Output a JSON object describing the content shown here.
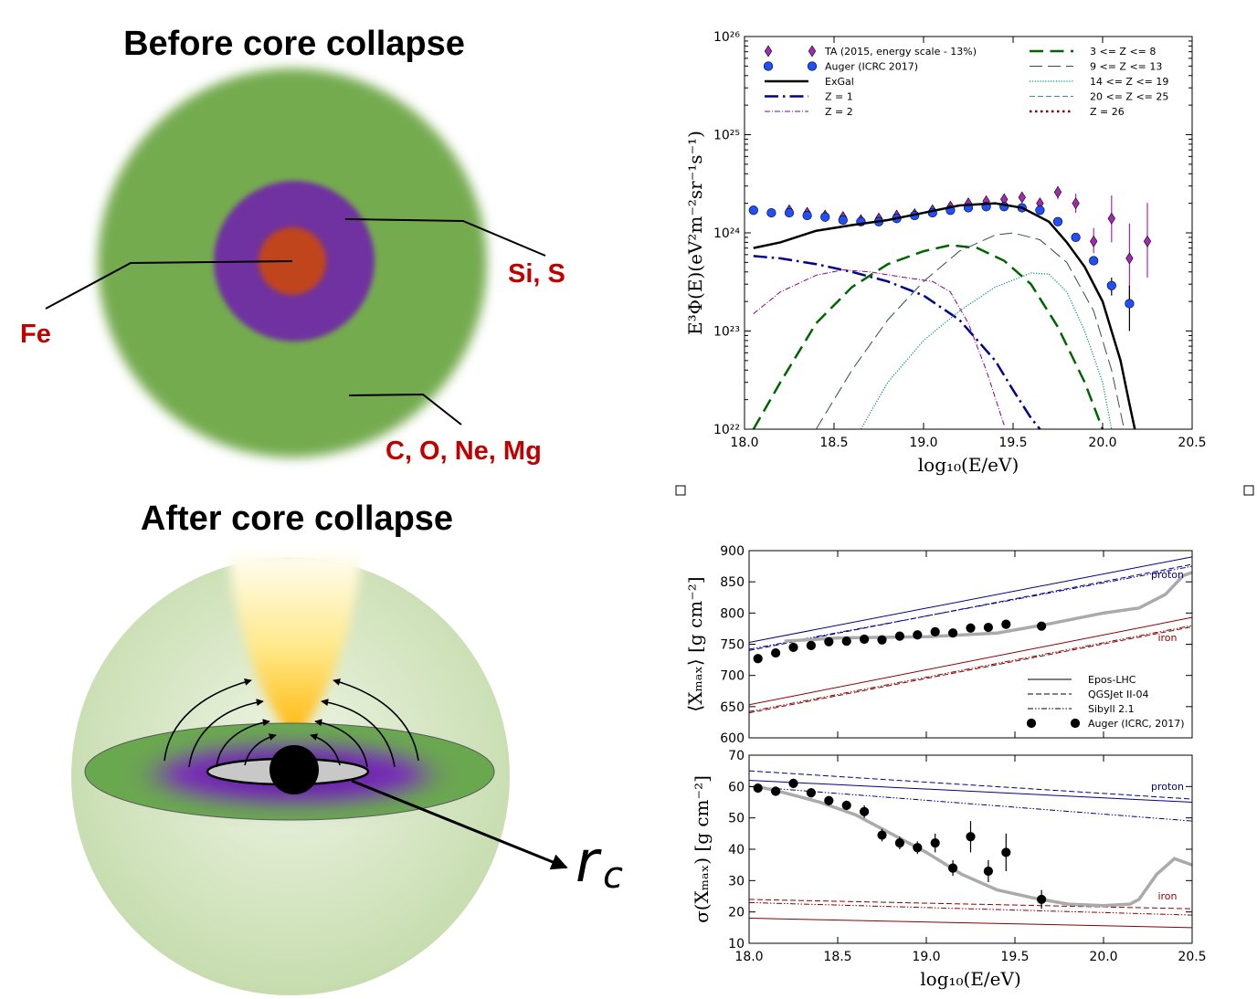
{
  "diagrams": {
    "before": {
      "title": "Before core collapse",
      "labels": [
        "Si, S",
        "Fe",
        "C, O, Ne, Mg"
      ]
    },
    "after": {
      "title": "After core collapse",
      "radius_label": {
        "label": "r",
        "subscript": "c"
      }
    }
  },
  "chart_data": [
    {
      "type": "line",
      "yscale": "log",
      "xlabel": "log₁₀(E/eV)",
      "ylabel": "E³Φ(E)(eV²m⁻²sr⁻¹s⁻¹)",
      "xlim": [
        18,
        20.5
      ],
      "ylim": [
        1e+22,
        1e+26
      ],
      "xticks": [
        {
          "value": 18,
          "label": "18.0"
        },
        18.5,
        {
          "value": 19,
          "label": "19.0"
        },
        19.5,
        {
          "value": 20,
          "label": "20.0"
        },
        20.5
      ],
      "yticks": [
        {
          "value": 1e+22,
          "label": "10²²"
        },
        {
          "value": 1e+23,
          "label": "10²³"
        },
        {
          "value": 1e+24,
          "label": "10²⁴"
        },
        {
          "value": 1e+25,
          "label": "10²⁵"
        },
        {
          "value": 1e+26,
          "label": "10²⁶"
        }
      ],
      "series": [
        {
          "name": "TA (2015, energy scale - 13%)",
          "color": "#a32ab0",
          "marker": "diamond",
          "x": [
            18.25,
            18.35,
            18.45,
            18.55,
            18.65,
            18.75,
            18.85,
            18.95,
            19.05,
            19.15,
            19.25,
            19.35,
            19.45,
            19.55,
            19.65,
            19.75,
            19.85,
            19.95,
            20.05,
            20.15,
            20.25
          ],
          "values": [
            1.7e+24,
            1.6e+24,
            1.5e+24,
            1.45e+24,
            1.35e+24,
            1.4e+24,
            1.5e+24,
            1.55e+24,
            1.7e+24,
            1.85e+24,
            2e+24,
            2.1e+24,
            2.2e+24,
            2.3e+24,
            2e+24,
            2.6e+24,
            2e+24,
            8.2e+23,
            1.4e+24,
            5.5e+23,
            8.2e+23
          ],
          "yerr_low": [
            1e+23,
            1e+23,
            1e+23,
            1e+23,
            1e+23,
            1e+23,
            1e+23,
            1e+23,
            1e+23,
            1e+23,
            1e+23,
            1.5e+23,
            1.5e+23,
            2e+23,
            2e+23,
            4e+23,
            4e+23,
            2e+23,
            6e+23,
            3.5e+23,
            4.7e+23
          ],
          "yerr_high": [
            1e+23,
            1e+23,
            1e+23,
            1e+23,
            1e+23,
            1e+23,
            1e+23,
            1e+23,
            1e+23,
            1e+23,
            1e+23,
            1.5e+23,
            1.5e+23,
            2e+23,
            2e+23,
            4e+23,
            5e+23,
            3e+23,
            1e+24,
            7e+23,
            1.2e+24
          ]
        },
        {
          "name": "Auger (ICRC 2017)",
          "color": "#1f4fff",
          "marker": "circle",
          "x": [
            18.05,
            18.15,
            18.25,
            18.35,
            18.45,
            18.55,
            18.65,
            18.75,
            18.85,
            18.95,
            19.05,
            19.15,
            19.25,
            19.35,
            19.45,
            19.55,
            19.65,
            19.75,
            19.85,
            19.95,
            20.05,
            20.15
          ],
          "values": [
            1.7e+24,
            1.6e+24,
            1.6e+24,
            1.5e+24,
            1.45e+24,
            1.35e+24,
            1.3e+24,
            1.3e+24,
            1.4e+24,
            1.5e+24,
            1.6e+24,
            1.7e+24,
            1.8e+24,
            1.85e+24,
            1.85e+24,
            1.8e+24,
            1.7e+24,
            1.3e+24,
            9e+23,
            5.2e+23,
            2.9e+23,
            1.9e+23
          ],
          "yerr_low": [
            2e+22,
            2e+22,
            2e+22,
            2e+22,
            2e+22,
            2e+22,
            2e+22,
            2e+22,
            2e+22,
            2e+22,
            2e+22,
            2e+22,
            2e+22,
            2e+22,
            2e+22,
            2e+22,
            3e+22,
            4e+22,
            5e+22,
            5e+22,
            6e+22,
            9e+22
          ],
          "yerr_high": [
            2e+22,
            2e+22,
            2e+22,
            2e+22,
            2e+22,
            2e+22,
            2e+22,
            2e+22,
            2e+22,
            2e+22,
            2e+22,
            2e+22,
            2e+22,
            2e+22,
            2e+22,
            2e+22,
            3e+22,
            4e+22,
            5e+22,
            5e+22,
            6e+22,
            1e+23
          ]
        },
        {
          "name": "ExGal",
          "color": "#000000",
          "dash": "solid",
          "linewidth": 2.5,
          "x": [
            18.05,
            18.2,
            18.4,
            18.6,
            18.8,
            19.0,
            19.2,
            19.4,
            19.55,
            19.7,
            19.8,
            19.9,
            20.0,
            20.1,
            20.15,
            20.18
          ],
          "values": [
            7e+23,
            8e+23,
            1.05e+24,
            1.2e+24,
            1.35e+24,
            1.6e+24,
            1.9e+24,
            2e+24,
            1.8e+24,
            1.3e+24,
            8e+23,
            4.5e+23,
            2e+23,
            5e+22,
            1.8e+22,
            1e+22
          ]
        },
        {
          "name": "Z = 1",
          "color": "#00008b",
          "dash": "dashdot",
          "linewidth": 2.5,
          "x": [
            18.05,
            18.2,
            18.4,
            18.6,
            18.8,
            19.0,
            19.2,
            19.4,
            19.5,
            19.6,
            19.65
          ],
          "values": [
            5.8e+23,
            5.5e+23,
            4.8e+23,
            4e+23,
            3.2e+23,
            2.3e+23,
            1.3e+23,
            5e+22,
            2.5e+22,
            1.3e+22,
            1e+22
          ]
        },
        {
          "name": "Z = 2",
          "color": "#8b008b",
          "dash": "dashdot",
          "linewidth": 1,
          "x": [
            18.05,
            18.2,
            18.4,
            18.55,
            18.7,
            18.9,
            19.05,
            19.15,
            19.25,
            19.35,
            19.45
          ],
          "values": [
            1.5e+23,
            2.5e+23,
            3.7e+23,
            4.2e+23,
            4e+23,
            3.5e+23,
            3.2e+23,
            2.5e+23,
            1.2e+23,
            4e+22,
            1.1e+22
          ]
        },
        {
          "name": "3 <= Z <= 8",
          "color": "#006400",
          "dash": "dashed",
          "linewidth": 2.5,
          "x": [
            18.05,
            18.2,
            18.4,
            18.6,
            18.8,
            19.0,
            19.15,
            19.3,
            19.45,
            19.6,
            19.75,
            19.9,
            20.0
          ],
          "values": [
            1e+22,
            3e+22,
            1.2e+23,
            2.8e+23,
            4.8e+23,
            6.5e+23,
            7.5e+23,
            7e+23,
            5.2e+23,
            3e+23,
            1.1e+23,
            3e+22,
            1e+22
          ]
        },
        {
          "name": "9 <= Z <= 13",
          "color": "#2f4f4f",
          "dash": "longdash",
          "linewidth": 1,
          "x": [
            18.4,
            18.6,
            18.8,
            19.0,
            19.2,
            19.4,
            19.5,
            19.65,
            19.8,
            19.95,
            20.05,
            20.12
          ],
          "values": [
            1e+22,
            4e+22,
            1.3e+23,
            3.2e+23,
            6.5e+23,
            9.5e+23,
            1e+24,
            8.5e+23,
            5e+23,
            1.6e+23,
            4e+22,
            1e+22
          ]
        },
        {
          "name": "14 <= Z <= 19",
          "color": "#008b8b",
          "dash": "dotted",
          "linewidth": 1.2,
          "x": [
            18.65,
            18.8,
            19.0,
            19.2,
            19.4,
            19.6,
            19.7,
            19.8,
            19.9,
            20.0,
            20.05
          ],
          "values": [
            1e+22,
            3e+22,
            8e+22,
            1.6e+23,
            2.8e+23,
            3.9e+23,
            3.8e+23,
            2.5e+23,
            1e+23,
            3e+22,
            1e+22
          ]
        },
        {
          "name": "20 <= Z <= 25",
          "color": "#4682b4",
          "dash": "dashed",
          "linewidth": 1,
          "x": [],
          "values": []
        },
        {
          "name": "Z = 26",
          "color": "#8b0000",
          "dash": "dotted",
          "linewidth": 2.5,
          "x": [],
          "values": []
        }
      ]
    },
    {
      "type": "line",
      "ylabel": "⟨Xₘₐₓ⟩ [g cm⁻²]",
      "xlim": [
        18,
        20.5
      ],
      "ylim": [
        600,
        900
      ],
      "xticks": [
        18,
        18.5,
        19,
        19.5,
        20,
        20.5
      ],
      "yticks": [
        600,
        650,
        700,
        750,
        800,
        850,
        900
      ],
      "annotations": [
        {
          "text": "proton",
          "color": "#00008b"
        },
        {
          "text": "iron",
          "color": "#8b0000"
        }
      ],
      "legend": {
        "corner": "lower right",
        "entries": [
          {
            "name": "Epos-LHC",
            "dash": "solid"
          },
          {
            "name": "QGSJet II-04",
            "dash": "dashed"
          },
          {
            "name": "Sibyll 2.1",
            "dash": "dashdotdot"
          },
          {
            "name": "Auger (ICRC, 2017)",
            "marker": "circle"
          }
        ]
      },
      "series": [
        {
          "color": "#00008b",
          "dash": "solid",
          "linewidth": 1,
          "x": [
            18,
            20.5
          ],
          "values": [
            753,
            890
          ]
        },
        {
          "color": "#00008b",
          "dash": "dashed",
          "linewidth": 1,
          "x": [
            18,
            20.5
          ],
          "values": [
            740,
            878
          ]
        },
        {
          "color": "#00008b",
          "dash": "dashdotdot",
          "linewidth": 1,
          "x": [
            18,
            20.5
          ],
          "values": [
            742,
            875
          ]
        },
        {
          "color": "#8b0000",
          "dash": "solid",
          "linewidth": 1,
          "x": [
            18,
            20.5
          ],
          "values": [
            653,
            793
          ]
        },
        {
          "color": "#8b0000",
          "dash": "dashed",
          "linewidth": 1,
          "x": [
            18,
            20.5
          ],
          "values": [
            640,
            778
          ]
        },
        {
          "color": "#8b0000",
          "dash": "dashdotdot",
          "linewidth": 1,
          "x": [
            18,
            20.5
          ],
          "values": [
            642,
            780
          ]
        },
        {
          "color": "#aaaaaa",
          "dash": "solid",
          "linewidth": 3.5,
          "x": [
            18.2,
            18.5,
            19.0,
            19.4,
            19.7,
            20.0,
            20.2,
            20.35,
            20.45,
            20.5
          ],
          "values": [
            755,
            760,
            762,
            768,
            783,
            800,
            808,
            830,
            860,
            865
          ]
        },
        {
          "color": "#000000",
          "marker": "circle",
          "x": [
            18.05,
            18.15,
            18.25,
            18.35,
            18.45,
            18.55,
            18.65,
            18.75,
            18.85,
            18.95,
            19.05,
            19.15,
            19.25,
            19.35,
            19.45,
            19.65
          ],
          "values": [
            727,
            736,
            745,
            748,
            754,
            755,
            758,
            757,
            763,
            765,
            770,
            768,
            776,
            777,
            782,
            779
          ],
          "yerr": [
            5,
            5,
            5,
            5,
            5,
            5,
            5,
            5,
            5,
            5,
            5,
            5,
            6,
            6,
            7,
            7
          ]
        }
      ]
    },
    {
      "type": "line",
      "xlabel": "log₁₀(E/eV)",
      "ylabel": "σ(Xₘₐₓ) [g cm⁻²]",
      "xlim": [
        18,
        20.5
      ],
      "ylim": [
        10,
        70
      ],
      "xticks": [
        {
          "value": 18,
          "label": "18.0"
        },
        18.5,
        {
          "value": 19,
          "label": "19.0"
        },
        19.5,
        {
          "value": 20,
          "label": "20.0"
        },
        20.5
      ],
      "yticks": [
        10,
        20,
        30,
        40,
        50,
        60,
        70
      ],
      "annotations": [
        {
          "text": "proton",
          "color": "#00008b"
        },
        {
          "text": "iron",
          "color": "#8b0000"
        }
      ],
      "series": [
        {
          "color": "#00008b",
          "dash": "solid",
          "linewidth": 1,
          "x": [
            18,
            20.5
          ],
          "values": [
            62,
            55
          ]
        },
        {
          "color": "#00008b",
          "dash": "dashed",
          "linewidth": 1,
          "x": [
            18,
            20.5
          ],
          "values": [
            65,
            56
          ]
        },
        {
          "color": "#00008b",
          "dash": "dashdotdot",
          "linewidth": 1,
          "x": [
            18,
            20.5
          ],
          "values": [
            60,
            49
          ]
        },
        {
          "color": "#8b0000",
          "dash": "solid",
          "linewidth": 1,
          "x": [
            18,
            20.5
          ],
          "values": [
            18,
            15
          ]
        },
        {
          "color": "#8b0000",
          "dash": "dashed",
          "linewidth": 1,
          "x": [
            18,
            20.5
          ],
          "values": [
            24,
            21
          ]
        },
        {
          "color": "#8b0000",
          "dash": "dashdotdot",
          "linewidth": 1,
          "x": [
            18,
            20.5
          ],
          "values": [
            23,
            19
          ]
        },
        {
          "color": "#aaaaaa",
          "dash": "solid",
          "linewidth": 3.5,
          "x": [
            18.05,
            18.2,
            18.4,
            18.6,
            18.8,
            19.0,
            19.2,
            19.4,
            19.6,
            19.8,
            20.0,
            20.15,
            20.2,
            20.3,
            20.4,
            20.5
          ],
          "values": [
            60,
            58,
            55,
            51,
            45,
            39,
            32,
            27,
            24.5,
            22.5,
            22,
            22.5,
            24,
            32,
            37,
            35
          ]
        },
        {
          "color": "#000000",
          "marker": "circle",
          "x": [
            18.05,
            18.15,
            18.25,
            18.35,
            18.45,
            18.55,
            18.65,
            18.75,
            18.85,
            18.95,
            19.05,
            19.15,
            19.25,
            19.35,
            19.45,
            19.65
          ],
          "values": [
            59.5,
            58.5,
            61,
            58,
            55.5,
            54,
            52,
            44.5,
            42,
            40.5,
            42,
            34,
            44,
            33,
            39,
            24
          ],
          "yerr": [
            1.5,
            1.5,
            1.5,
            1.5,
            1.5,
            1.5,
            2,
            2,
            2,
            2,
            3,
            2.5,
            5,
            3.5,
            6,
            3
          ]
        }
      ]
    }
  ]
}
